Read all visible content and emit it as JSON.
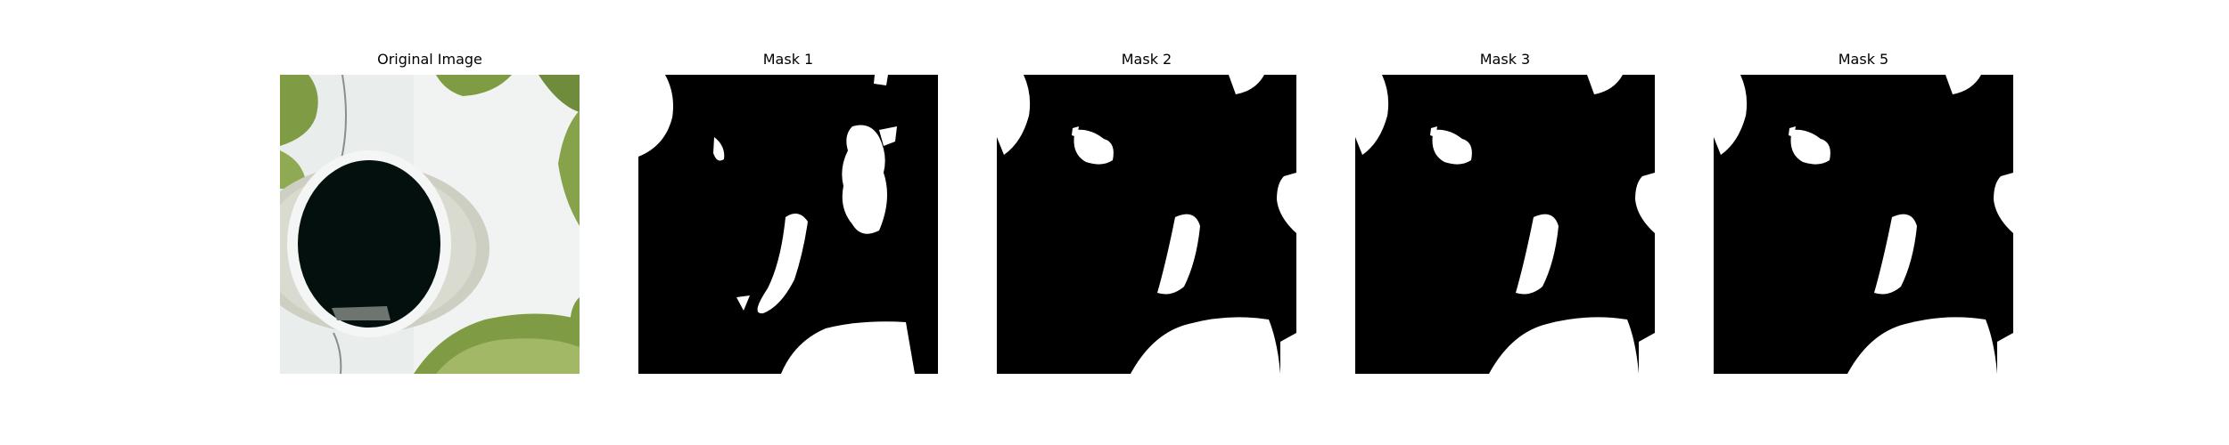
{
  "figure": {
    "panels": [
      {
        "title": "Original Image",
        "kind": "photo"
      },
      {
        "title": "Mask 1",
        "kind": "mask"
      },
      {
        "title": "Mask 2",
        "kind": "mask"
      },
      {
        "title": "Mask 3",
        "kind": "mask"
      },
      {
        "title": "Mask 5",
        "kind": "mask"
      }
    ]
  },
  "colors": {
    "mask_background": "#000000",
    "mask_foreground": "#ffffff",
    "leaf": "#7f9c45",
    "leaf_light": "#a2b866",
    "surface": "#e9edeb",
    "hole": "#04100e",
    "rim": "#f4f6f5",
    "tube": "#cdcfc2"
  }
}
